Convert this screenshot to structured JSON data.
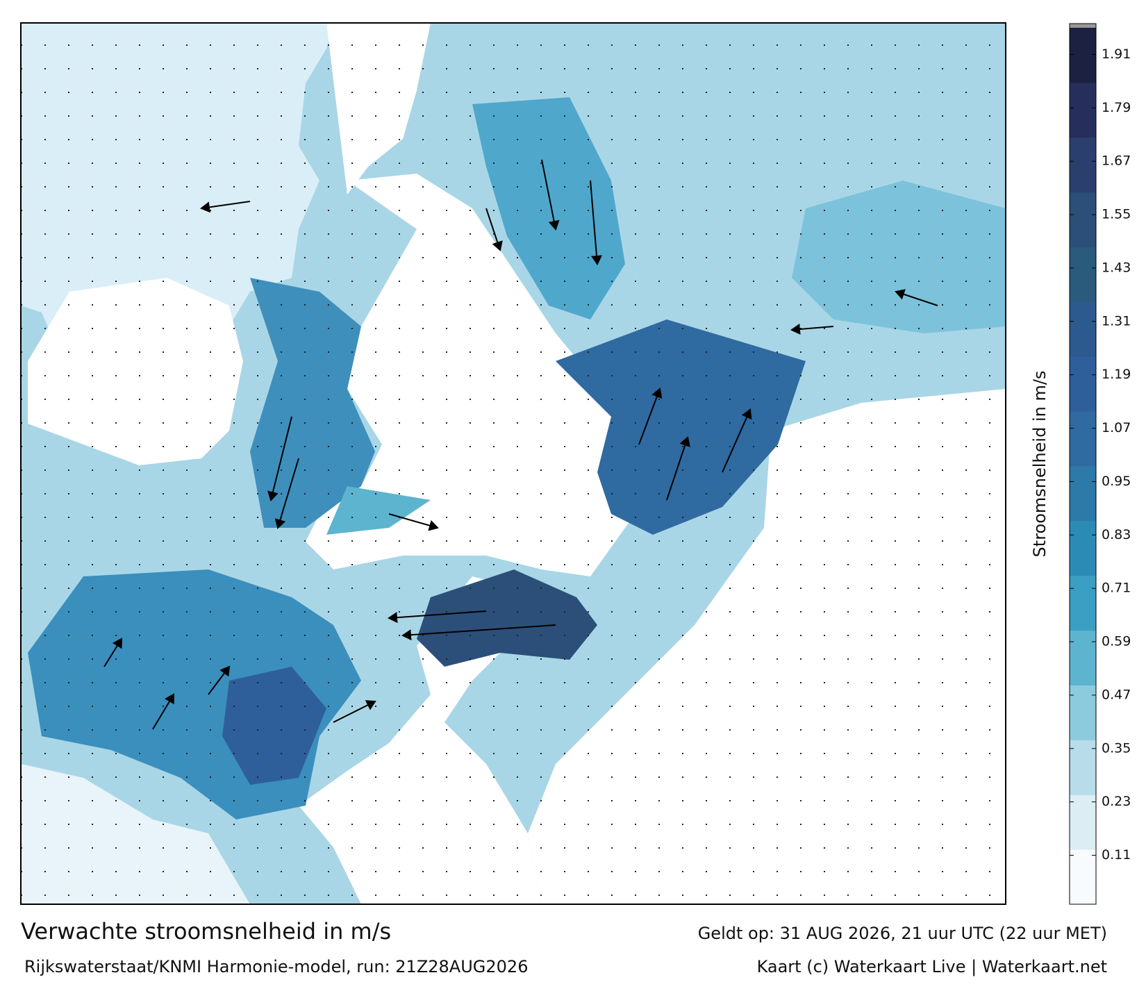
{
  "map": {
    "title": "Verwachte stroomsnelheid in m/s",
    "subtitle": "Rijkswaterstaat/KNMI Harmonie-model, run: 21Z28AUG2026",
    "valid": "Geldt op: 31 AUG 2026, 21 uur UTC (22 uur MET)",
    "credit": "Kaart (c) Waterkaart Live | Waterkaart.net",
    "colorbar": {
      "label": "Stroomsnelheid in m/s",
      "lim": [
        0,
        1.97
      ],
      "ticks": [
        0.11,
        0.23,
        0.35,
        0.47,
        0.59,
        0.71,
        0.83,
        0.95,
        1.07,
        1.19,
        1.31,
        1.43,
        1.55,
        1.67,
        1.79,
        1.91
      ],
      "colors": [
        "#f7fbfd",
        "#dcedf4",
        "#b8dce9",
        "#8ccbdd",
        "#5db4cf",
        "#3a9fc2",
        "#2c8bb5",
        "#2d7aa8",
        "#2f6aa0",
        "#2f5f9a",
        "#2d5a8e",
        "#2a5a7c",
        "#2b4f78",
        "#2b3f6e",
        "#262f5c",
        "#1c2141"
      ]
    }
  }
}
